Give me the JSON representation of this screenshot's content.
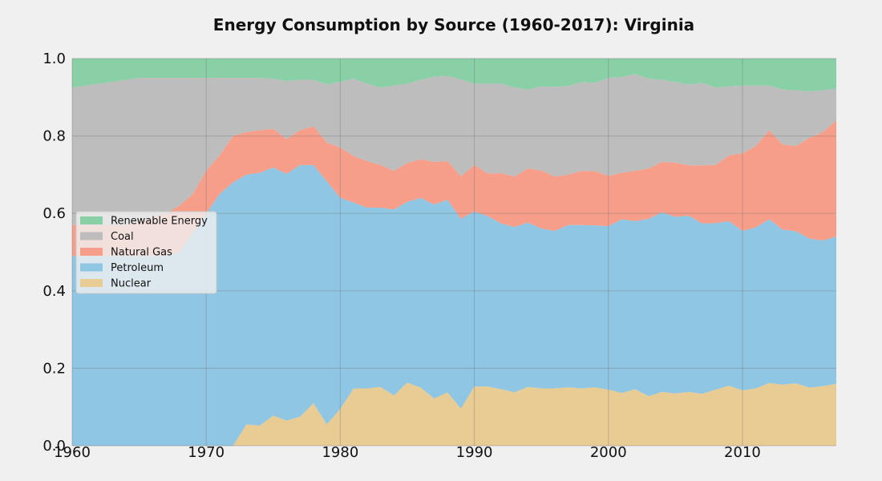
{
  "chart_data": {
    "type": "area",
    "stacked": true,
    "normalized": true,
    "title": "Energy Consumption by Source (1960-2017): Virginia",
    "xlabel": "",
    "ylabel": "",
    "xlim": [
      1960,
      2017
    ],
    "ylim": [
      0,
      1.0
    ],
    "x_ticks": [
      "1960",
      "1970",
      "1980",
      "1990",
      "2000",
      "2010"
    ],
    "y_ticks": [
      "0.0",
      "0.2",
      "0.4",
      "0.6",
      "0.8",
      "1.0"
    ],
    "grid": true,
    "legend_position": "center-left",
    "legend_order": [
      "Renewable Energy",
      "Coal",
      "Natural Gas",
      "Petroleum",
      "Nuclear"
    ],
    "x": [
      1960,
      1961,
      1962,
      1963,
      1964,
      1965,
      1966,
      1967,
      1968,
      1969,
      1970,
      1971,
      1972,
      1973,
      1974,
      1975,
      1976,
      1977,
      1978,
      1979,
      1980,
      1981,
      1982,
      1983,
      1984,
      1985,
      1986,
      1987,
      1988,
      1989,
      1990,
      1991,
      1992,
      1993,
      1994,
      1995,
      1996,
      1997,
      1998,
      1999,
      2000,
      2001,
      2002,
      2003,
      2004,
      2005,
      2006,
      2007,
      2008,
      2009,
      2010,
      2011,
      2012,
      2013,
      2014,
      2015,
      2016,
      2017
    ],
    "series": [
      {
        "name": "Nuclear",
        "color": "#e8cc94",
        "values": [
          0,
          0,
          0,
          0,
          0,
          0,
          0,
          0,
          0,
          0,
          0,
          0,
          0,
          0.055,
          0.052,
          0.078,
          0.065,
          0.075,
          0.11,
          0.055,
          0.095,
          0.148,
          0.148,
          0.152,
          0.13,
          0.163,
          0.15,
          0.122,
          0.138,
          0.096,
          0.153,
          0.153,
          0.146,
          0.138,
          0.152,
          0.148,
          0.148,
          0.151,
          0.148,
          0.151,
          0.145,
          0.136,
          0.146,
          0.128,
          0.139,
          0.135,
          0.139,
          0.134,
          0.145,
          0.155,
          0.143,
          0.148,
          0.162,
          0.158,
          0.161,
          0.15,
          0.154,
          0.16
        ]
      },
      {
        "name": "Petroleum",
        "color": "#8ec6e4",
        "values": [
          0.49,
          0.49,
          0.49,
          0.49,
          0.49,
          0.49,
          0.49,
          0.49,
          0.5,
          0.55,
          0.6,
          0.65,
          0.68,
          0.645,
          0.653,
          0.642,
          0.637,
          0.65,
          0.615,
          0.628,
          0.545,
          0.48,
          0.467,
          0.463,
          0.48,
          0.467,
          0.49,
          0.501,
          0.497,
          0.49,
          0.452,
          0.44,
          0.428,
          0.427,
          0.424,
          0.413,
          0.407,
          0.419,
          0.422,
          0.418,
          0.422,
          0.449,
          0.434,
          0.458,
          0.464,
          0.456,
          0.455,
          0.44,
          0.43,
          0.425,
          0.412,
          0.416,
          0.423,
          0.4,
          0.393,
          0.385,
          0.376,
          0.38
        ]
      },
      {
        "name": "Natural Gas",
        "color": "#f69e8a",
        "values": [
          0.08,
          0.08,
          0.08,
          0.08,
          0.08,
          0.09,
          0.1,
          0.11,
          0.12,
          0.1,
          0.11,
          0.1,
          0.12,
          0.11,
          0.11,
          0.1,
          0.09,
          0.09,
          0.1,
          0.1,
          0.13,
          0.12,
          0.12,
          0.11,
          0.1,
          0.1,
          0.1,
          0.11,
          0.1,
          0.11,
          0.12,
          0.11,
          0.13,
          0.13,
          0.14,
          0.15,
          0.14,
          0.13,
          0.14,
          0.14,
          0.13,
          0.12,
          0.13,
          0.13,
          0.13,
          0.14,
          0.13,
          0.15,
          0.15,
          0.17,
          0.2,
          0.21,
          0.23,
          0.22,
          0.22,
          0.26,
          0.28,
          0.3
        ]
      },
      {
        "name": "Coal",
        "color": "#bdbdbd",
        "values": [
          0.355,
          0.36,
          0.365,
          0.37,
          0.375,
          0.37,
          0.36,
          0.35,
          0.33,
          0.3,
          0.24,
          0.2,
          0.15,
          0.14,
          0.135,
          0.13,
          0.15,
          0.13,
          0.12,
          0.15,
          0.17,
          0.2,
          0.2,
          0.2,
          0.22,
          0.205,
          0.205,
          0.22,
          0.22,
          0.25,
          0.21,
          0.232,
          0.231,
          0.23,
          0.204,
          0.217,
          0.232,
          0.229,
          0.229,
          0.228,
          0.253,
          0.247,
          0.25,
          0.232,
          0.212,
          0.208,
          0.209,
          0.213,
          0.2,
          0.178,
          0.175,
          0.156,
          0.115,
          0.142,
          0.144,
          0.12,
          0.108,
          0.082
        ]
      },
      {
        "name": "Renewable Energy",
        "color": "#89d0a7",
        "values": [
          0.075,
          0.07,
          0.065,
          0.06,
          0.055,
          0.05,
          0.05,
          0.05,
          0.05,
          0.05,
          0.05,
          0.05,
          0.05,
          0.05,
          0.05,
          0.052,
          0.058,
          0.055,
          0.055,
          0.067,
          0.06,
          0.052,
          0.065,
          0.075,
          0.07,
          0.065,
          0.055,
          0.047,
          0.045,
          0.054,
          0.065,
          0.065,
          0.065,
          0.075,
          0.08,
          0.072,
          0.073,
          0.071,
          0.061,
          0.063,
          0.05,
          0.048,
          0.04,
          0.052,
          0.055,
          0.061,
          0.067,
          0.063,
          0.075,
          0.072,
          0.07,
          0.07,
          0.07,
          0.08,
          0.082,
          0.085,
          0.082,
          0.078
        ]
      }
    ]
  }
}
